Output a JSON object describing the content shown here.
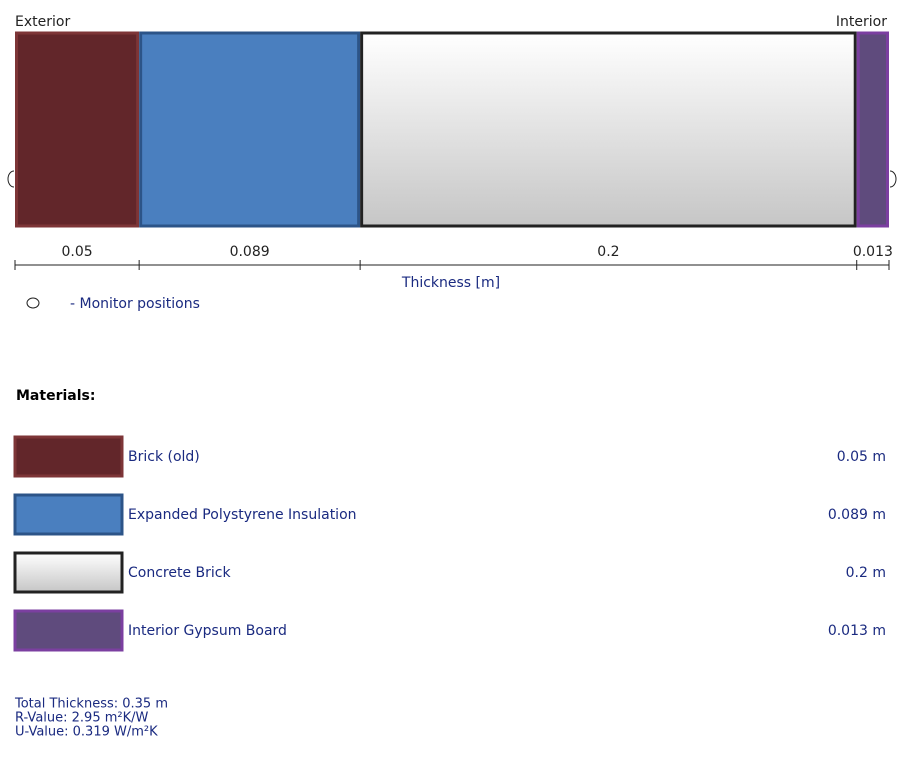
{
  "header": {
    "exterior": "Exterior",
    "interior": "Interior"
  },
  "layers": [
    {
      "name": "Brick (old)",
      "thickness": 0.05,
      "thickness_label": "0.05 m",
      "fill": "#62262a",
      "border": "#7d3537"
    },
    {
      "name": "Expanded Polystyrene Insulation",
      "thickness": 0.089,
      "thickness_label": "0.089 m",
      "fill": "#4a7fbf",
      "border": "#2c5488"
    },
    {
      "name": "Concrete Brick",
      "thickness": 0.2,
      "thickness_label": "0.2 m",
      "fill": "url(#concrete)",
      "border": "#222222"
    },
    {
      "name": "Interior Gypsum Board",
      "thickness": 0.013,
      "thickness_label": "0.013 m",
      "fill": "#5f4b7d",
      "border": "#7b3fa0"
    }
  ],
  "axis_label": "Thickness [m]",
  "monitor_legend": "- Monitor positions",
  "materials_heading": "Materials:",
  "summary": [
    "Total Thickness: 0.35 m",
    "R-Value: 2.95 m²K/W",
    "U-Value: 0.319 W/m²K"
  ]
}
